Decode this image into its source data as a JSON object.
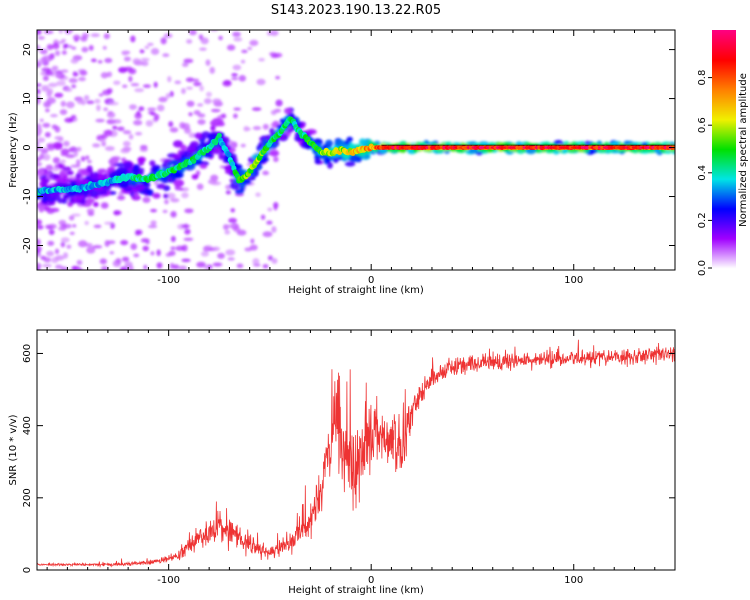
{
  "figure_title": "S143.2023.190.13.22.R05",
  "chart_data": [
    {
      "type": "heatmap",
      "title": "S143.2023.190.13.22.R05",
      "xlabel": "Height of straight line (km)",
      "ylabel": "Frequency (Hz)",
      "xlim": [
        -165,
        150
      ],
      "ylim": [
        -25,
        24
      ],
      "xticks": [
        -100,
        0,
        100
      ],
      "yticks": [
        -20,
        -10,
        0,
        10,
        20
      ],
      "grid": false,
      "colorbar": {
        "label": "Normalized spectral amplitude",
        "range": [
          0,
          1
        ],
        "ticks": [
          0.0,
          0.2,
          0.4,
          0.6,
          0.8
        ],
        "colors": [
          "#ffffff",
          "#a000ff",
          "#0000ff",
          "#00e5e5",
          "#00e000",
          "#f0f000",
          "#ff8000",
          "#ff0000",
          "#ff0080"
        ]
      },
      "ridge": {
        "x": [
          -165,
          -150,
          -140,
          -130,
          -120,
          -110,
          -100,
          -90,
          -80,
          -75,
          -70,
          -65,
          -60,
          -55,
          -50,
          -45,
          -40,
          -35,
          -30,
          -25,
          -20,
          -15,
          -10,
          -5,
          0,
          10,
          50,
          100,
          150
        ],
        "y": [
          -9,
          -8.5,
          -8,
          -7,
          -6,
          -6.5,
          -5,
          -3,
          0,
          2,
          -2,
          -7,
          -5,
          -2,
          1,
          3,
          6,
          3,
          1,
          -1,
          -1,
          -0.5,
          -1,
          -0.5,
          0,
          0,
          0,
          0,
          0
        ],
        "amplitude": [
          0.35,
          0.35,
          0.35,
          0.35,
          0.4,
          0.45,
          0.45,
          0.45,
          0.4,
          0.4,
          0.35,
          0.5,
          0.55,
          0.55,
          0.45,
          0.45,
          0.45,
          0.4,
          0.5,
          0.55,
          0.6,
          0.6,
          0.65,
          0.7,
          0.7,
          0.85,
          0.8,
          0.8,
          0.8
        ]
      }
    },
    {
      "type": "line",
      "xlabel": "Height of straight line (km)",
      "ylabel": "SNR (10 * v/v)",
      "xlim": [
        -165,
        150
      ],
      "ylim": [
        0,
        665
      ],
      "xticks": [
        -100,
        0,
        100
      ],
      "yticks": [
        0,
        200,
        400,
        600
      ],
      "grid": false,
      "series": [
        {
          "color": "#ee3333",
          "x": [
            -165,
            -150,
            -130,
            -110,
            -100,
            -95,
            -90,
            -85,
            -80,
            -75,
            -70,
            -65,
            -60,
            -55,
            -50,
            -45,
            -40,
            -35,
            -30,
            -25,
            -20,
            -17,
            -14,
            -11,
            -8,
            -5,
            -2,
            0,
            3,
            6,
            9,
            12,
            15,
            18,
            22,
            25,
            30,
            35,
            40,
            50,
            60,
            70,
            80,
            90,
            100,
            110,
            120,
            130,
            140,
            150
          ],
          "y": [
            15,
            15,
            15,
            20,
            30,
            45,
            70,
            90,
            100,
            120,
            110,
            90,
            70,
            55,
            45,
            60,
            80,
            110,
            150,
            200,
            350,
            420,
            300,
            320,
            260,
            330,
            380,
            360,
            400,
            380,
            370,
            340,
            300,
            410,
            460,
            500,
            530,
            550,
            565,
            570,
            575,
            580,
            580,
            585,
            585,
            590,
            590,
            590,
            595,
            600
          ],
          "noise": [
            3,
            4,
            5,
            6,
            10,
            15,
            25,
            35,
            40,
            45,
            45,
            35,
            30,
            20,
            15,
            25,
            35,
            50,
            60,
            70,
            110,
            130,
            130,
            120,
            120,
            110,
            110,
            100,
            90,
            80,
            80,
            80,
            90,
            70,
            50,
            40,
            30,
            30,
            28,
            25,
            25,
            25,
            25,
            25,
            25,
            25,
            25,
            25,
            25,
            25
          ]
        }
      ]
    }
  ]
}
